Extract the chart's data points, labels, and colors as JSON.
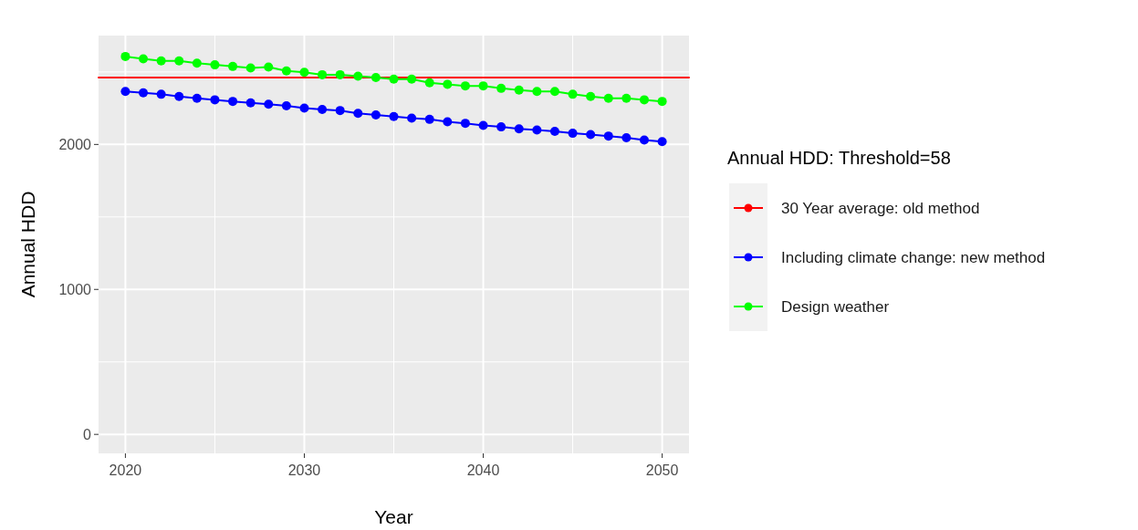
{
  "chart_data": {
    "type": "line",
    "xlabel": "Year",
    "ylabel": "Annual HDD",
    "legend_title": "Annual HDD: Threshold=58",
    "x": [
      2020,
      2021,
      2022,
      2023,
      2024,
      2025,
      2026,
      2027,
      2028,
      2029,
      2030,
      2031,
      2032,
      2033,
      2034,
      2035,
      2036,
      2037,
      2038,
      2039,
      2040,
      2041,
      2042,
      2043,
      2044,
      2045,
      2046,
      2047,
      2048,
      2049,
      2050
    ],
    "series": [
      {
        "name": "30 Year average: old method",
        "color": "#ff0000",
        "x": [
          2018.5,
          2051.5
        ],
        "values": [
          2461,
          2461
        ],
        "marker": "none"
      },
      {
        "name": "Including climate change: new method",
        "color": "#0000ff",
        "values": [
          2366,
          2356,
          2346,
          2331,
          2318,
          2308,
          2297,
          2287,
          2278,
          2266,
          2251,
          2241,
          2234,
          2214,
          2203,
          2192,
          2182,
          2173,
          2156,
          2146,
          2131,
          2121,
          2108,
          2100,
          2090,
          2077,
          2068,
          2058,
          2046,
          2031,
          2019
        ]
      },
      {
        "name": "Design weather",
        "color": "#00ff00",
        "values": [
          2607,
          2591,
          2576,
          2576,
          2561,
          2549,
          2538,
          2528,
          2534,
          2507,
          2498,
          2481,
          2481,
          2471,
          2461,
          2450,
          2450,
          2425,
          2415,
          2404,
          2404,
          2387,
          2375,
          2366,
          2366,
          2346,
          2331,
          2318,
          2318,
          2308,
          2297
        ]
      }
    ],
    "xlim": [
      2018.5,
      2051.5
    ],
    "xticks": [
      2020,
      2030,
      2040,
      2050
    ],
    "ylim": [
      -131,
      2751
    ],
    "yticks": [
      0,
      1000,
      2000
    ],
    "grid": true,
    "legend": "right",
    "marker": "circle",
    "line_style": "solid"
  }
}
